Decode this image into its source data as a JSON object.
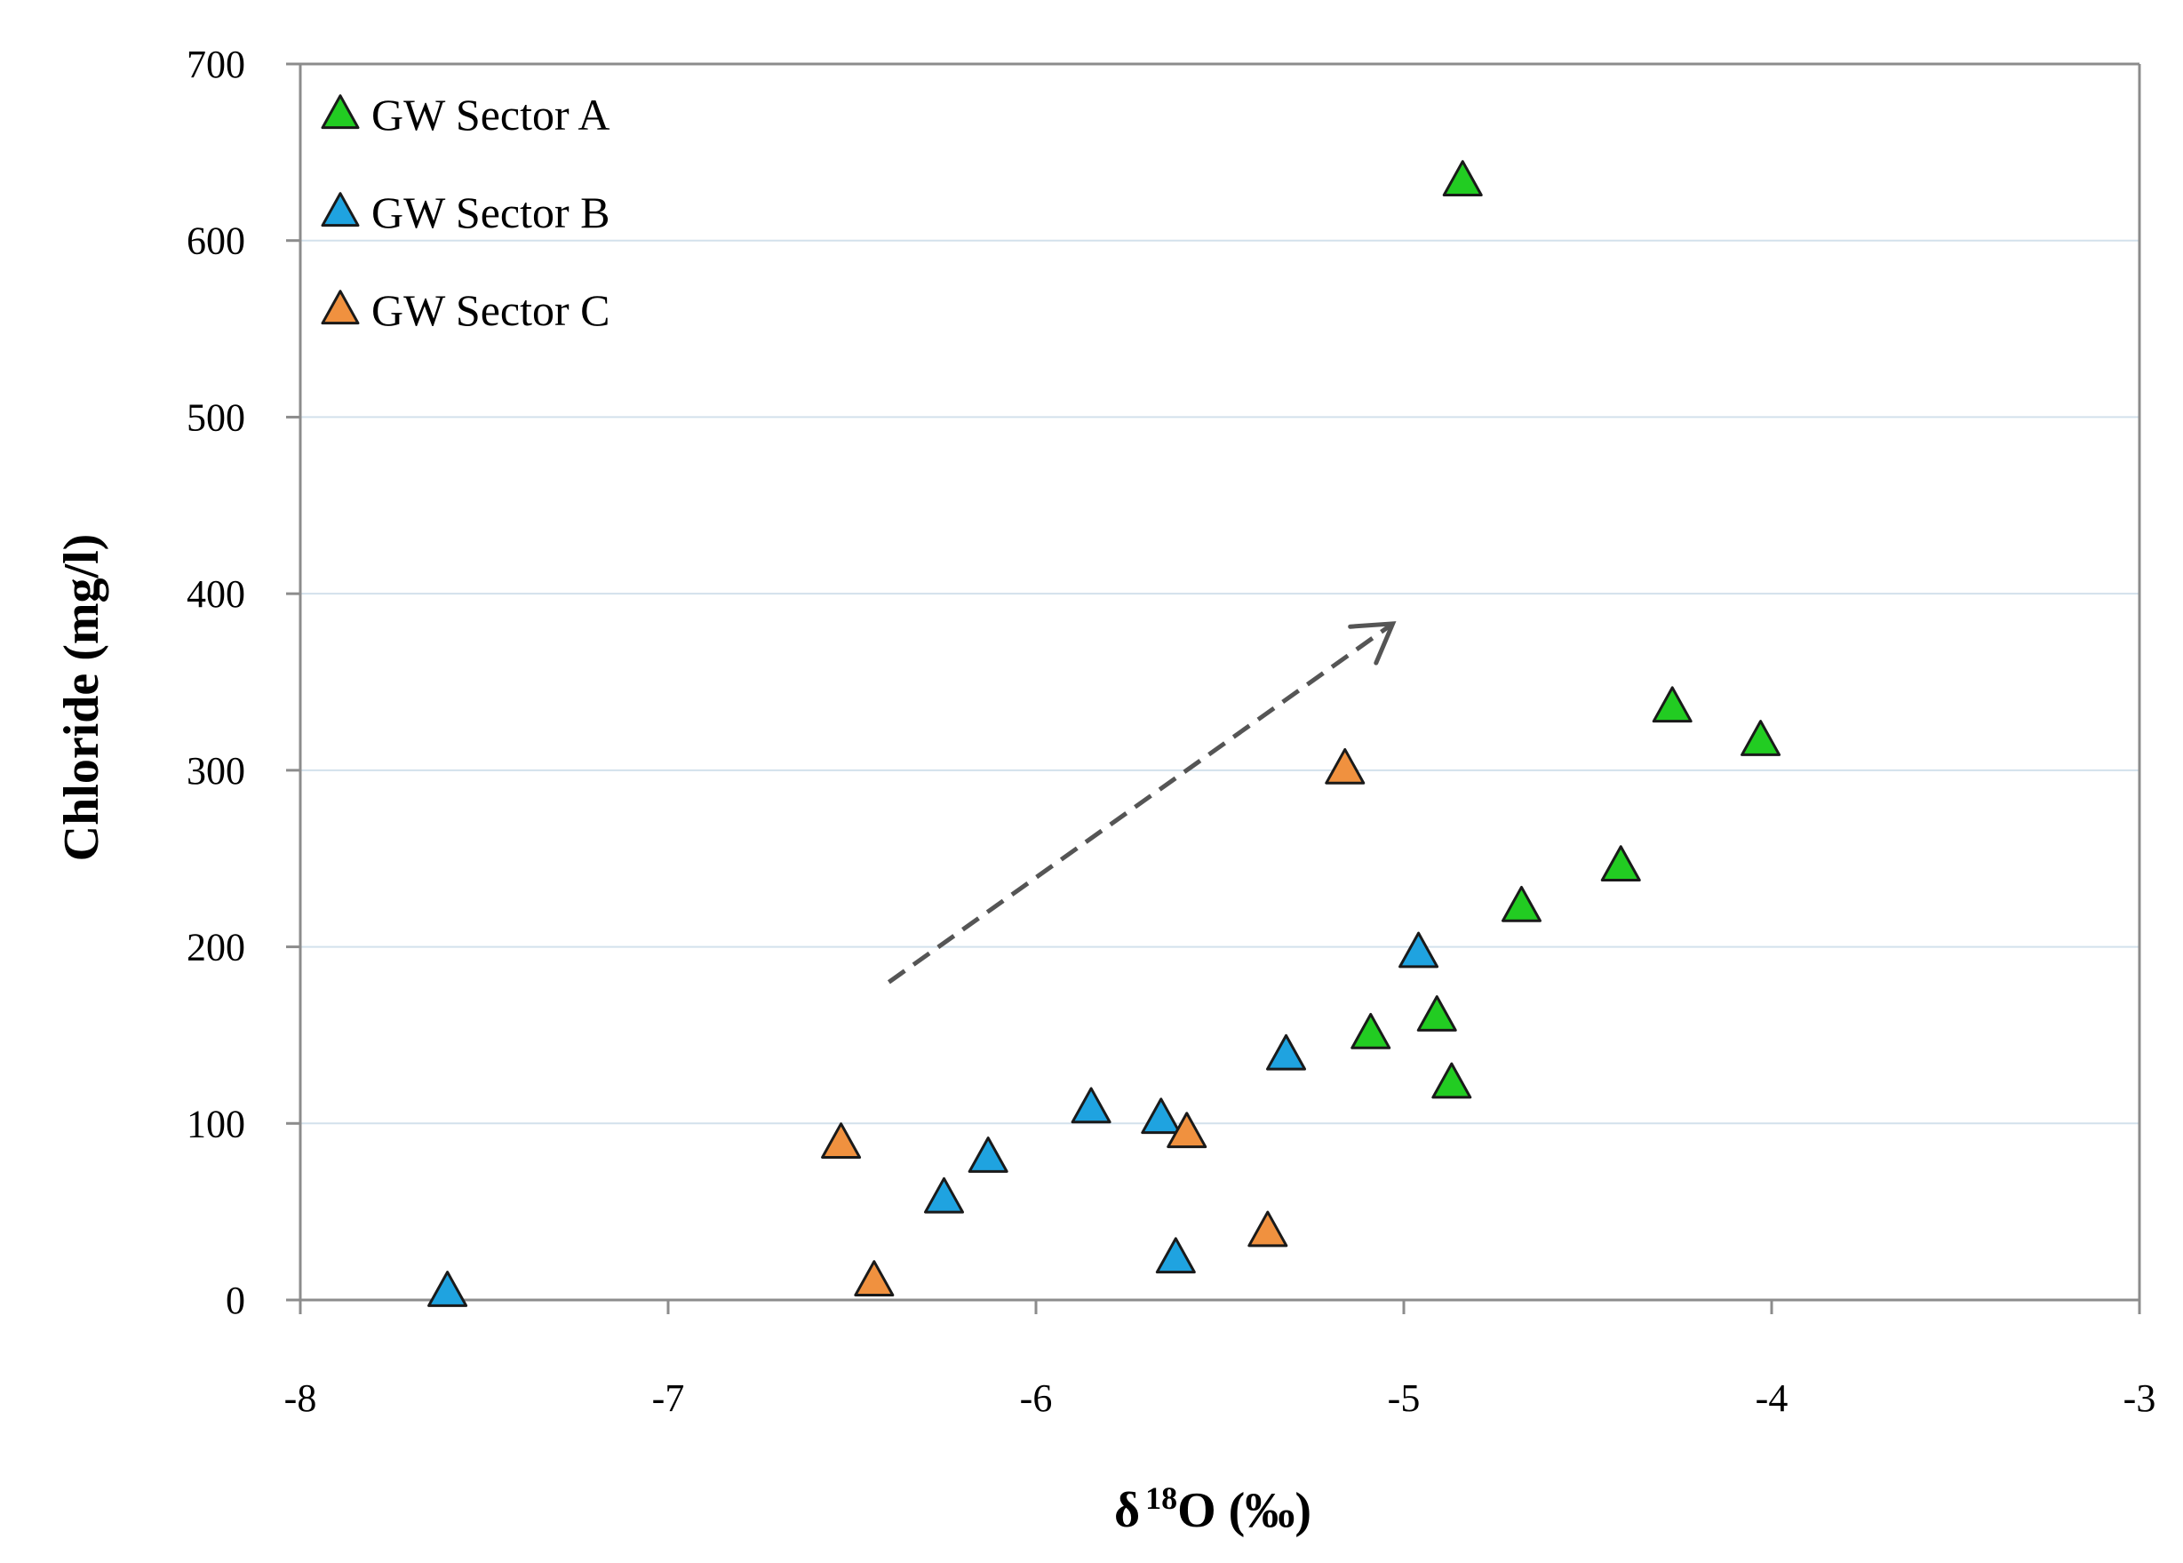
{
  "chart_data": {
    "type": "scatter",
    "xlabel_prefix": "δ",
    "xlabel_sup": "18",
    "xlabel_suffix": "O (‰)",
    "ylabel": "Chloride (mg/l)",
    "xlim": [
      -8,
      -3
    ],
    "ylim": [
      0,
      700
    ],
    "x_ticks": [
      "-8",
      "-7",
      "-6",
      "-5",
      "-4",
      "-3"
    ],
    "y_ticks": [
      "0",
      "100",
      "200",
      "300",
      "400",
      "500",
      "600",
      "700"
    ],
    "grid": "horizontal",
    "legend_position": "top-left",
    "series": [
      {
        "name": "GW Sector A",
        "color": "#22cc22",
        "points": [
          {
            "x": -4.84,
            "y": 633
          },
          {
            "x": -4.27,
            "y": 335
          },
          {
            "x": -4.03,
            "y": 316
          },
          {
            "x": -4.41,
            "y": 245
          },
          {
            "x": -4.68,
            "y": 222
          },
          {
            "x": -4.91,
            "y": 160
          },
          {
            "x": -5.09,
            "y": 150
          },
          {
            "x": -4.87,
            "y": 122
          }
        ]
      },
      {
        "name": "GW Sector B",
        "color": "#1fa3e0",
        "points": [
          {
            "x": -7.6,
            "y": 4
          },
          {
            "x": -6.25,
            "y": 57
          },
          {
            "x": -6.13,
            "y": 80
          },
          {
            "x": -5.85,
            "y": 108
          },
          {
            "x": -5.66,
            "y": 102
          },
          {
            "x": -5.62,
            "y": 23
          },
          {
            "x": -5.32,
            "y": 138
          },
          {
            "x": -4.96,
            "y": 196
          }
        ]
      },
      {
        "name": "GW Sector C",
        "color": "#f0913f",
        "points": [
          {
            "x": -6.53,
            "y": 88
          },
          {
            "x": -6.44,
            "y": 10
          },
          {
            "x": -5.59,
            "y": 94
          },
          {
            "x": -5.37,
            "y": 38
          },
          {
            "x": -5.16,
            "y": 300
          }
        ]
      }
    ],
    "annotations": [
      {
        "type": "dashed-arrow",
        "from": {
          "x": -6.4,
          "y": 180
        },
        "to": {
          "x": -5.03,
          "y": 383
        }
      }
    ]
  }
}
